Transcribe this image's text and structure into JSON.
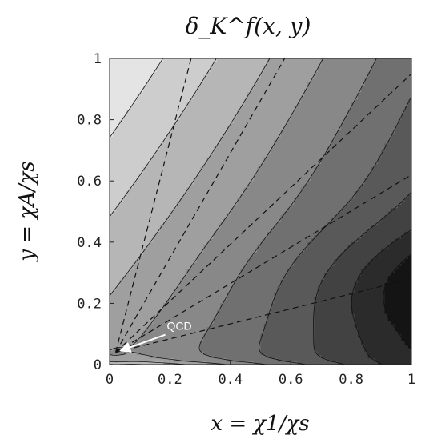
{
  "chart_data": {
    "type": "contour",
    "title": "δ_K^f(x, y)",
    "xlabel": "x = χ1/χs",
    "ylabel": "y = χA/χs",
    "xlim": [
      0,
      1
    ],
    "ylim": [
      0,
      1
    ],
    "x_ticks": [
      "0",
      "0.2",
      "0.4",
      "0.6",
      "0.8",
      "1"
    ],
    "y_ticks": [
      "0",
      "0.2",
      "0.4",
      "0.6",
      "0.8",
      "1"
    ],
    "grid": false,
    "legend": "none",
    "contour_levels": 10,
    "shading": "grayscale, lightest at top-left (low x, high y), darkest near x=1, y≈0.25",
    "dashed_rays": {
      "origin": [
        0.02,
        0.04
      ],
      "endpoints": [
        [
          0.27,
          1.0
        ],
        [
          0.58,
          1.0
        ],
        [
          1.0,
          0.95
        ],
        [
          1.0,
          0.62
        ],
        [
          1.0,
          0.28
        ]
      ]
    },
    "annotations": [
      {
        "text": "QCD",
        "arrow_to": [
          0.02,
          0.04
        ]
      }
    ]
  }
}
